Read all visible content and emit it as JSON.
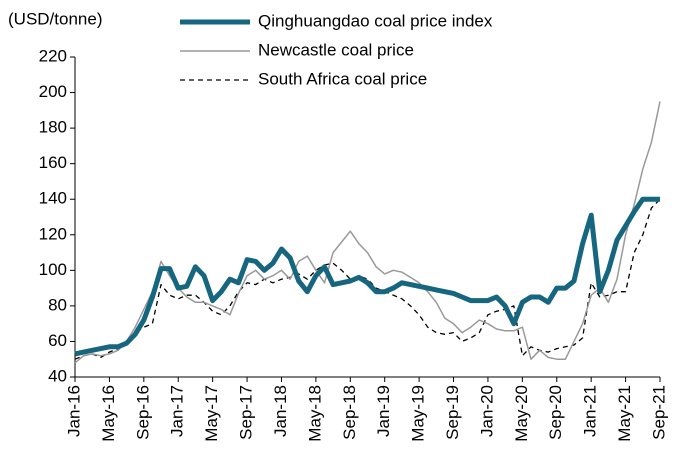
{
  "chart_data": {
    "type": "line",
    "ylabel": "(USD/tonne)",
    "categories": [
      "Jan-16",
      null,
      null,
      null,
      "May-16",
      null,
      null,
      null,
      "Sep-16",
      null,
      null,
      null,
      "Jan-17",
      null,
      null,
      null,
      "May-17",
      null,
      null,
      null,
      "Sep-17",
      null,
      null,
      null,
      "Jan-18",
      null,
      null,
      null,
      "May-18",
      null,
      null,
      null,
      "Sep-18",
      null,
      null,
      null,
      "Jan-19",
      null,
      null,
      null,
      "May-19",
      null,
      null,
      null,
      "Sep-19",
      null,
      null,
      null,
      "Jan-20",
      null,
      null,
      null,
      "May-20",
      null,
      null,
      null,
      "Sep-20",
      null,
      null,
      null,
      "Jan-21",
      null,
      null,
      null,
      "May-21",
      null,
      null,
      null,
      "Sep-21"
    ],
    "series": [
      {
        "name": "Qinghuangdao coal price index",
        "color": "#17667f",
        "width": 5,
        "dash": null,
        "values": [
          53,
          54,
          55,
          56,
          57,
          57,
          59,
          64,
          72,
          85,
          101,
          101,
          90,
          91,
          102,
          97,
          83,
          88,
          95,
          93,
          106,
          105,
          100,
          104,
          112,
          107,
          94,
          88,
          97,
          102,
          92,
          93,
          94,
          96,
          93,
          88,
          88,
          90,
          93,
          92,
          91,
          90,
          89,
          88,
          87,
          85,
          83,
          83,
          83,
          85,
          80,
          70,
          82,
          85,
          85,
          82,
          90,
          90,
          94,
          115,
          131,
          88,
          100,
          117,
          125,
          133,
          140,
          140,
          140
        ]
      },
      {
        "name": "Newcastle coal price",
        "color": "#999999",
        "width": 1.5,
        "dash": null,
        "values": [
          48,
          52,
          53,
          52,
          53,
          55,
          60,
          68,
          78,
          88,
          105,
          97,
          90,
          85,
          82,
          82,
          80,
          78,
          75,
          87,
          97,
          100,
          95,
          97,
          100,
          95,
          105,
          108,
          100,
          93,
          110,
          116,
          122,
          115,
          110,
          102,
          98,
          100,
          99,
          96,
          93,
          88,
          82,
          73,
          70,
          65,
          68,
          72,
          70,
          67,
          66,
          66,
          68,
          50,
          55,
          51,
          50,
          50,
          60,
          70,
          86,
          90,
          82,
          95,
          120,
          137,
          157,
          172,
          195
        ]
      },
      {
        "name": "South Africa coal price",
        "color": "#000000",
        "width": 1.3,
        "dash": "5,4",
        "values": [
          50,
          52,
          53,
          51,
          54,
          56,
          60,
          65,
          68,
          70,
          92,
          86,
          84,
          86,
          86,
          82,
          77,
          75,
          80,
          88,
          93,
          92,
          95,
          93,
          95,
          96,
          98,
          95,
          100,
          103,
          104,
          100,
          95,
          97,
          95,
          90,
          88,
          86,
          84,
          80,
          75,
          68,
          65,
          64,
          65,
          60,
          62,
          65,
          75,
          77,
          78,
          80,
          52,
          57,
          55,
          54,
          56,
          57,
          58,
          62,
          93,
          85,
          86,
          88,
          88,
          110,
          120,
          135,
          140
        ]
      }
    ],
    "ylim": [
      40,
      220
    ],
    "yticks": [
      40,
      60,
      80,
      100,
      120,
      140,
      160,
      180,
      200,
      220
    ],
    "grid": false
  }
}
